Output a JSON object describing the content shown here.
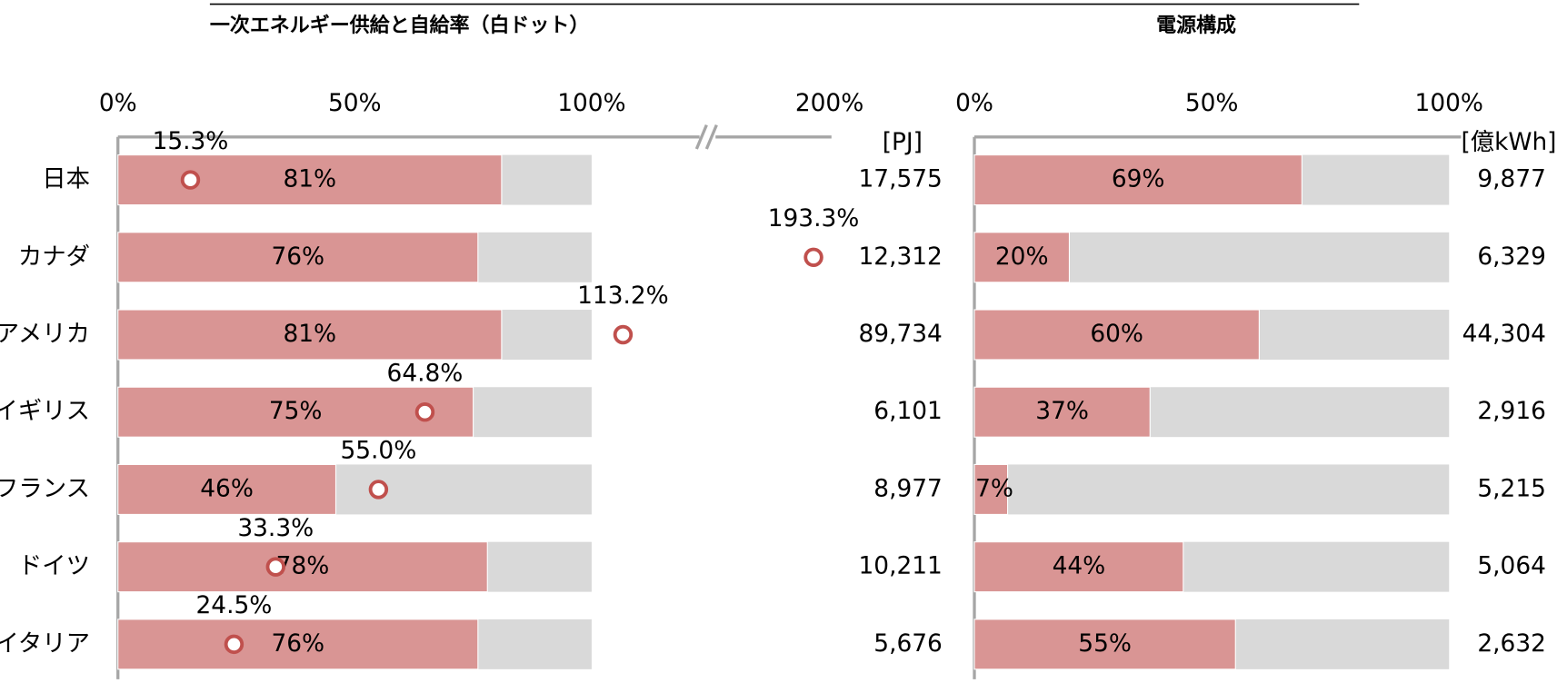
{
  "chart_data": [
    {
      "type": "bar",
      "title": "一次エネルギー供給と自給率（白ドット）",
      "categories": [
        "日本",
        "カナダ",
        "アメリカ",
        "イギリス",
        "フランス",
        "ドイツ",
        "イタリア"
      ],
      "series": [
        {
          "color": "#d99594",
          "values": [
            81,
            76,
            81,
            75,
            46,
            78,
            76
          ],
          "value_labels": [
            "81%",
            "76%",
            "81%",
            "75%",
            "46%",
            "78%",
            "76%"
          ]
        }
      ],
      "markers": {
        "color": "#c0504d",
        "values": [
          15.3,
          193.3,
          113.2,
          64.8,
          55.0,
          33.3,
          24.5
        ],
        "value_labels": [
          "15.3%",
          "193.3%",
          "113.2%",
          "64.8%",
          "55.0%",
          "33.3%",
          "24.5%"
        ]
      },
      "totals": {
        "unit": "[PJ]",
        "values": [
          17575,
          12312,
          89734,
          6101,
          8977,
          10211,
          5676
        ],
        "value_labels": [
          "17,575",
          "12,312",
          "89,734",
          "6,101",
          "8,977",
          "10,211",
          "5,676"
        ]
      },
      "xlim": [
        0,
        200
      ],
      "axis_break": true,
      "xticks": [
        {
          "value": 0,
          "label": "0%"
        },
        {
          "value": 50,
          "label": "50%"
        },
        {
          "value": 100,
          "label": "100%"
        },
        {
          "value": 200,
          "label": "200%"
        }
      ]
    },
    {
      "type": "bar",
      "title": "電源構成",
      "categories": [
        "日本",
        "カナダ",
        "アメリカ",
        "イギリス",
        "フランス",
        "ドイツ",
        "イタリア"
      ],
      "series": [
        {
          "color": "#d99594",
          "values": [
            69,
            20,
            60,
            37,
            7,
            44,
            55
          ],
          "value_labels": [
            "69%",
            "20%",
            "60%",
            "37%",
            "7%",
            "44%",
            "55%"
          ]
        }
      ],
      "totals": {
        "unit": "[億kWh]",
        "values": [
          9877,
          6329,
          44304,
          2916,
          5215,
          5064,
          2632
        ],
        "value_labels": [
          "9,877",
          "6,329",
          "44,304",
          "2,916",
          "5,215",
          "5,064",
          "2,632"
        ]
      },
      "xlim": [
        0,
        100
      ],
      "xticks": [
        {
          "value": 0,
          "label": "0%"
        },
        {
          "value": 50,
          "label": "50%"
        },
        {
          "value": 100,
          "label": "100%"
        }
      ]
    }
  ]
}
